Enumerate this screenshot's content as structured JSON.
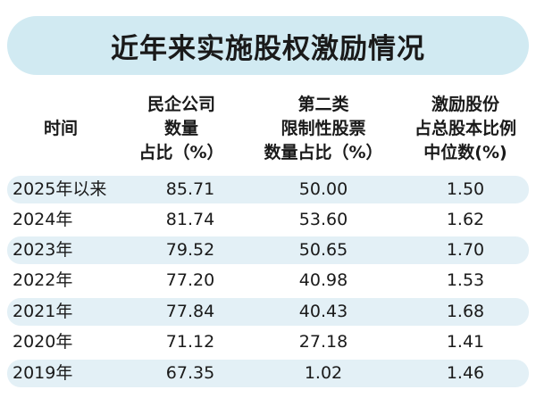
{
  "title": "近年来实施股权激励情况",
  "columns": [
    {
      "lines": [
        "时间"
      ]
    },
    {
      "lines": [
        "民企公司",
        "数量",
        "占比（%）"
      ]
    },
    {
      "lines": [
        "第二类",
        "限制性股票",
        "数量占比（%）"
      ]
    },
    {
      "lines": [
        "激励股份",
        "占总股本比例",
        "中位数(%)"
      ]
    }
  ],
  "rows": [
    {
      "year": "2025年以来",
      "private_share": "85.71",
      "class2_share": "50.00",
      "median_ratio": "1.50"
    },
    {
      "year": "2024年",
      "private_share": "81.74",
      "class2_share": "53.60",
      "median_ratio": "1.62"
    },
    {
      "year": "2023年",
      "private_share": "79.52",
      "class2_share": "50.65",
      "median_ratio": "1.70"
    },
    {
      "year": "2022年",
      "private_share": "77.20",
      "class2_share": "40.98",
      "median_ratio": "1.53"
    },
    {
      "year": "2021年",
      "private_share": "77.84",
      "class2_share": "40.43",
      "median_ratio": "1.68"
    },
    {
      "year": "2020年",
      "private_share": "71.12",
      "class2_share": "27.18",
      "median_ratio": "1.41"
    },
    {
      "year": "2019年",
      "private_share": "67.35",
      "class2_share": "1.02",
      "median_ratio": "1.46"
    }
  ],
  "colors": {
    "banner": "#d1eaf2",
    "row_shade": "#e3f0f6",
    "text": "#1a1a1a"
  }
}
